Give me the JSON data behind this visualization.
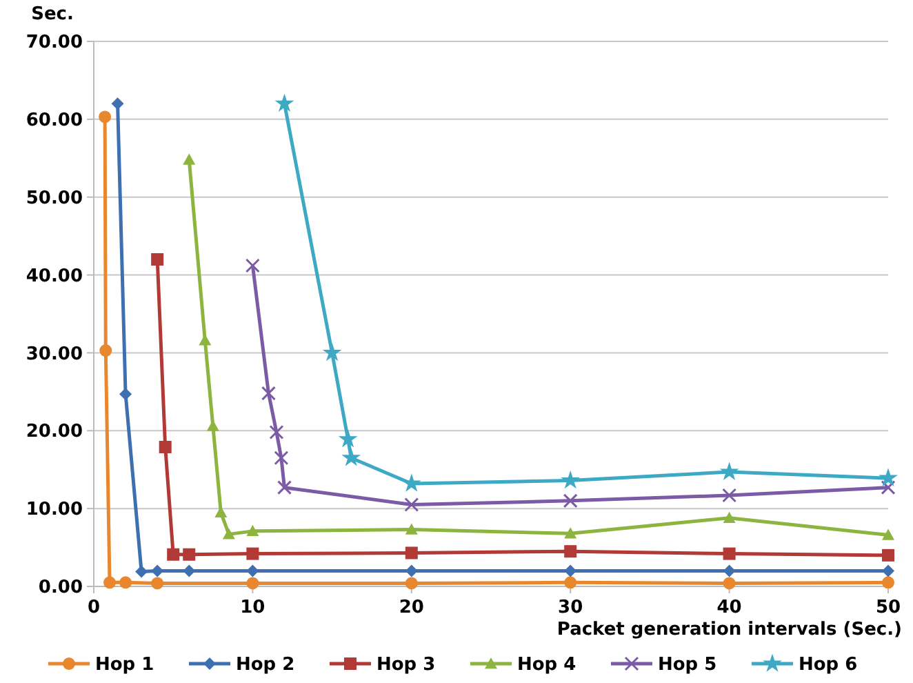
{
  "chart_data": {
    "type": "line",
    "xlabel": "Packet generation intervals (Sec.)",
    "ylabel": "Sec.",
    "xlim": [
      0,
      50
    ],
    "ylim": [
      0,
      70
    ],
    "xticks": [
      0,
      10,
      20,
      30,
      40,
      50
    ],
    "yticks": [
      {
        "value": 0,
        "label": "0.00"
      },
      {
        "value": 10,
        "label": "10.00"
      },
      {
        "value": 20,
        "label": "20.00"
      },
      {
        "value": 30,
        "label": "30.00"
      },
      {
        "value": 40,
        "label": "40.00"
      },
      {
        "value": 50,
        "label": "50.00"
      },
      {
        "value": 60,
        "label": "60.00"
      },
      {
        "value": 70,
        "label": "70.00"
      }
    ],
    "grid": "y",
    "legend": "bottom",
    "line_style": "solid",
    "series": [
      {
        "name": "Hop 1",
        "color": "#e8872e",
        "marker": "circle",
        "x": [
          0.7,
          0.75,
          1,
          2,
          4,
          10,
          20,
          30,
          40,
          50
        ],
        "values": [
          60.3,
          30.3,
          0.5,
          0.5,
          0.4,
          0.4,
          0.4,
          0.5,
          0.4,
          0.5
        ]
      },
      {
        "name": "Hop 2",
        "color": "#3e6fb0",
        "marker": "diamond",
        "x": [
          1.5,
          2,
          3,
          4,
          6,
          10,
          20,
          30,
          40,
          50
        ],
        "values": [
          62.0,
          24.7,
          1.9,
          2.0,
          2.0,
          2.0,
          2.0,
          2.0,
          2.0,
          2.0
        ]
      },
      {
        "name": "Hop 3",
        "color": "#b23a36",
        "marker": "square",
        "x": [
          4,
          4.5,
          5,
          6,
          10,
          20,
          30,
          40,
          50
        ],
        "values": [
          42.0,
          17.9,
          4.1,
          4.1,
          4.2,
          4.3,
          4.5,
          4.2,
          4.0
        ]
      },
      {
        "name": "Hop 4",
        "color": "#8cb43f",
        "marker": "triangle",
        "x": [
          6,
          7,
          7.5,
          8,
          8.5,
          10,
          20,
          30,
          40,
          50
        ],
        "values": [
          54.8,
          31.6,
          20.6,
          9.5,
          6.7,
          7.1,
          7.3,
          6.8,
          8.8,
          6.6
        ]
      },
      {
        "name": "Hop 5",
        "color": "#7c5ba6",
        "marker": "cross",
        "x": [
          10,
          11,
          11.5,
          11.8,
          12,
          20,
          30,
          40,
          50
        ],
        "values": [
          41.2,
          24.8,
          19.8,
          16.5,
          12.7,
          10.5,
          11.0,
          11.7,
          12.7
        ]
      },
      {
        "name": "Hop 6",
        "color": "#3da9c4",
        "marker": "star",
        "x": [
          12,
          15,
          16,
          16.2,
          20,
          30,
          40,
          50
        ],
        "values": [
          62.0,
          30.0,
          18.9,
          16.5,
          13.2,
          13.6,
          14.7,
          13.9
        ]
      }
    ]
  }
}
